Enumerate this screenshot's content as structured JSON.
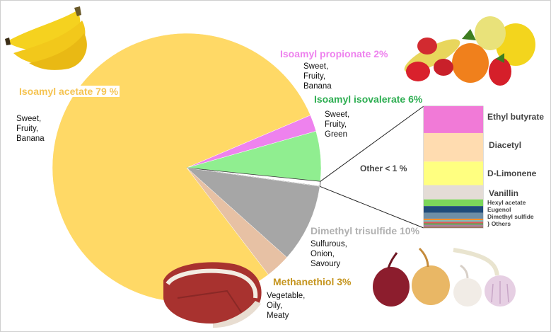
{
  "chart_data": {
    "type": "pie",
    "title": "",
    "slices": [
      {
        "label": "Isoamyl acetate 79 %",
        "value": 79,
        "color": "#ffd966",
        "descriptors": "Sweet,\nFruity,\nBanana",
        "label_color": "#f5c453"
      },
      {
        "label": "Isoamyl propionate 2%",
        "value": 2,
        "color": "#ee82ee",
        "descriptors": "Sweet,\nFruity,\nBanana",
        "label_color": "#ee82ee"
      },
      {
        "label": "Isoamyl isovalerate 6%",
        "value": 6,
        "color": "#90ee90",
        "descriptors": "Sweet,\nFruity,\nGreen",
        "label_color": "#2eae52"
      },
      {
        "label": "Other < 1 %",
        "value": 0.6,
        "color": "#ffffff",
        "descriptors": "",
        "label_color": "#555555"
      },
      {
        "label": "Dimethyl trisulfide 10%",
        "value": 9.4,
        "color": "#a6a6a6",
        "descriptors": "Sulfurous,\nOnion,\nSavoury",
        "label_color": "#b0b0b0"
      },
      {
        "label": "Methanethiol 3%",
        "value": 3,
        "color": "#e7c1a4",
        "descriptors": "Vegetable,\nOily,\nMeaty",
        "label_color": "#c5951f"
      }
    ],
    "other_breakdown": {
      "label": "Other < 1 %",
      "items": [
        {
          "name": "Ethyl butyrate",
          "share": 0.16,
          "color": "#f17ad7"
        },
        {
          "name": "Diacetyl",
          "share": 0.17,
          "color": "#ffdcb0"
        },
        {
          "name": "D-Limonene",
          "share": 0.14,
          "color": "#ffff80"
        },
        {
          "name": "Vanillin",
          "share": 0.085,
          "color": "#e4dcd6"
        },
        {
          "name": "Hexyl acetate",
          "share": 0.04,
          "color": "#7cd65a"
        },
        {
          "name": "Eugenol",
          "share": 0.04,
          "color": "#1f4b7a"
        },
        {
          "name": "Dimethyl sulfide",
          "share": 0.035,
          "color": "#6e8ea6"
        },
        {
          "name": "Others",
          "share": 0.055,
          "color": "#c98a54",
          "bracket": "}"
        }
      ],
      "others_stack_colors": [
        "#f28e2b",
        "#76b7b2",
        "#e15759",
        "#59a14f",
        "#af7aa1",
        "#9c755f"
      ]
    }
  },
  "pictures": {
    "banana": "banana-bunch-image",
    "fruits": "mixed-fruits-image",
    "ham": "cured-ham-image",
    "onion_garlic": "onion-and-garlic-image"
  }
}
